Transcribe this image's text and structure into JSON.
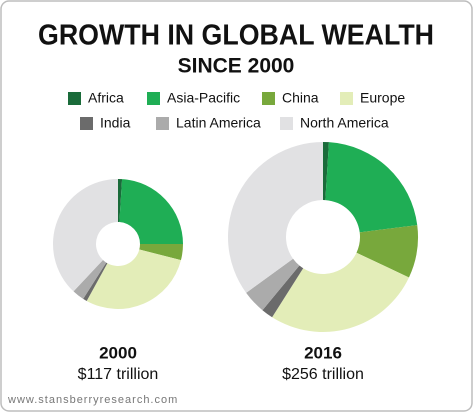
{
  "title": "GROWTH IN GLOBAL WEALTH",
  "subtitle": "SINCE 2000",
  "source": "www.stansberryresearch.com",
  "chart_data": [
    {
      "type": "pie",
      "title": "2000",
      "subtitle": "$117 trillion",
      "categories": [
        "Africa",
        "Asia-Pacific",
        "China",
        "Europe",
        "India",
        "Latin America",
        "North America"
      ],
      "values": [
        1,
        24,
        4,
        29,
        1,
        3,
        38
      ],
      "colors": [
        "#1a6b3a",
        "#1fae55",
        "#78a83c",
        "#e3edb8",
        "#6b6b6b",
        "#ababab",
        "#e1e1e3"
      ]
    },
    {
      "type": "pie",
      "title": "2016",
      "subtitle": "$256 trillion",
      "categories": [
        "Africa",
        "Asia-Pacific",
        "China",
        "Europe",
        "India",
        "Latin America",
        "North America"
      ],
      "values": [
        1,
        22,
        9,
        27,
        2,
        4,
        35
      ],
      "colors": [
        "#1a6b3a",
        "#1fae55",
        "#78a83c",
        "#e3edb8",
        "#6b6b6b",
        "#ababab",
        "#e1e1e3"
      ]
    }
  ]
}
